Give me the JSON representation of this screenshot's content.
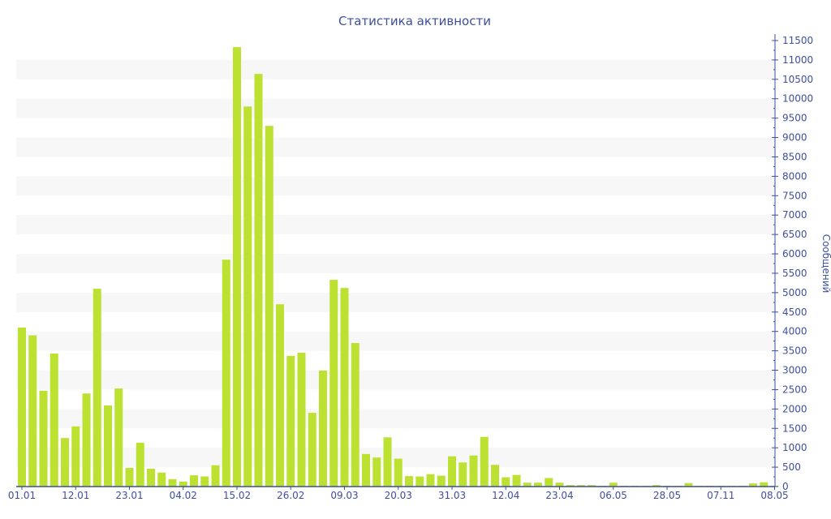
{
  "chart_data": {
    "type": "bar",
    "title": "Статистика активности",
    "ylabel": "Сообщений",
    "xlabel": "",
    "ylim": [
      0,
      11500
    ],
    "ytick_step": 500,
    "grid": "alternating horizontal bands",
    "bar_color": "#bce130",
    "axis_color": "#3e4f9c",
    "band_color": "#f7f7f7",
    "xtick_labels": [
      "01.01",
      "12.01",
      "23.01",
      "04.02",
      "15.02",
      "26.02",
      "09.03",
      "20.03",
      "31.03",
      "12.04",
      "23.04",
      "06.05",
      "28.05",
      "07.11",
      "08.05"
    ],
    "xtick_every": 5,
    "values": [
      4100,
      3900,
      2470,
      3430,
      1250,
      1550,
      2400,
      5100,
      2090,
      2530,
      480,
      1130,
      460,
      360,
      190,
      130,
      290,
      260,
      550,
      5850,
      11330,
      9800,
      10640,
      9300,
      4700,
      3370,
      3450,
      1900,
      2990,
      5330,
      5120,
      3700,
      840,
      750,
      1270,
      720,
      270,
      260,
      320,
      280,
      780,
      620,
      800,
      1280,
      560,
      240,
      300,
      100,
      100,
      220,
      100,
      40,
      40,
      40,
      20,
      100,
      20,
      20,
      20,
      40,
      20,
      20,
      90,
      20,
      20,
      20,
      20,
      20,
      80,
      110,
      20
    ]
  }
}
